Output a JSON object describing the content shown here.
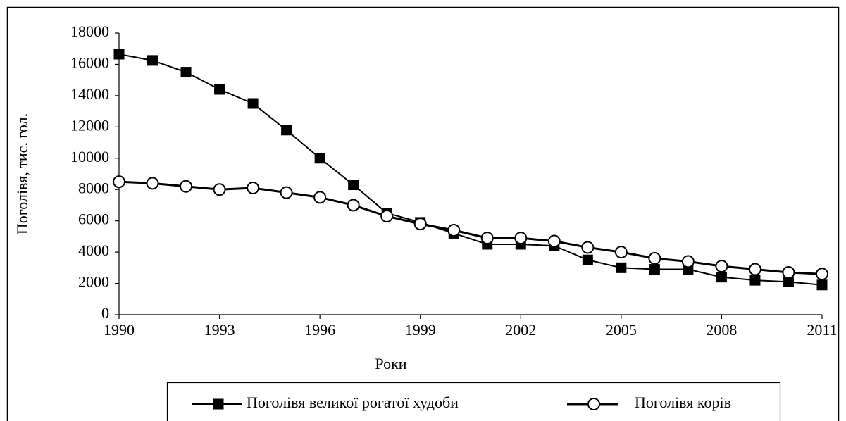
{
  "chart_data": {
    "type": "line",
    "x_label": "Роки",
    "y_label": "Поголівя, тис.  гол.",
    "x": [
      1990,
      1991,
      1992,
      1993,
      1994,
      1995,
      1996,
      1997,
      1998,
      1999,
      2000,
      2001,
      2002,
      2003,
      2004,
      2005,
      2006,
      2007,
      2008,
      2009,
      2010,
      2011
    ],
    "series": [
      {
        "name": "Поголівя великої рогатої худоби",
        "color": "#000000",
        "marker": "square",
        "values": [
          16650,
          16250,
          15500,
          14400,
          13500,
          11800,
          10000,
          8300,
          6500,
          5900,
          5200,
          4500,
          4500,
          4400,
          3500,
          3000,
          2900,
          2900,
          2400,
          2200,
          2100,
          1900
        ]
      },
      {
        "name": "Поголівя корів",
        "color": "#000000",
        "marker": "circle",
        "values": [
          8500,
          8400,
          8200,
          8000,
          8100,
          7800,
          7500,
          7000,
          6300,
          5800,
          5400,
          4900,
          4900,
          4700,
          4300,
          4000,
          3600,
          3400,
          3100,
          2900,
          2700,
          2600
        ]
      }
    ],
    "xlim": [
      1990,
      2011
    ],
    "xticks": [
      1990,
      1993,
      1996,
      1999,
      2002,
      2005,
      2008,
      2011
    ],
    "ylim": [
      0,
      18000
    ],
    "yticks": [
      0,
      2000,
      4000,
      6000,
      8000,
      10000,
      12000,
      14000,
      16000,
      18000
    ],
    "grid": false,
    "legend": "bottom"
  }
}
